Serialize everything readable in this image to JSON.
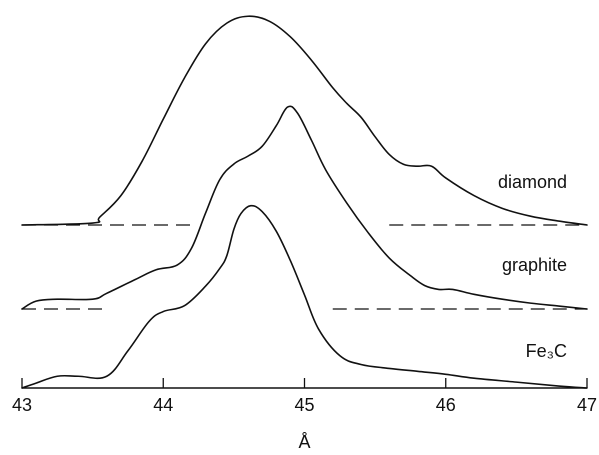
{
  "chart_data": {
    "type": "line",
    "xlabel": "Å",
    "xlim": [
      43,
      47
    ],
    "xticks": [
      43,
      44,
      45,
      46,
      47
    ],
    "tick_labels": [
      "43",
      "44",
      "45",
      "46",
      "47"
    ],
    "ylabel": "",
    "y_axis_shown": false,
    "grid": false,
    "series": [
      {
        "name": "diamond",
        "baseline": {
          "segments": [
            [
              43.0,
              44.2
            ],
            [
              45.6,
              47.0
            ]
          ]
        },
        "points": [
          [
            43.0,
            0.0
          ],
          [
            43.5,
            0.02
          ],
          [
            43.55,
            0.08
          ],
          [
            43.7,
            0.3
          ],
          [
            43.85,
            0.65
          ],
          [
            44.0,
            1.08
          ],
          [
            44.15,
            1.5
          ],
          [
            44.3,
            1.85
          ],
          [
            44.45,
            2.06
          ],
          [
            44.6,
            2.13
          ],
          [
            44.75,
            2.08
          ],
          [
            44.9,
            1.92
          ],
          [
            45.05,
            1.68
          ],
          [
            45.2,
            1.4
          ],
          [
            45.3,
            1.24
          ],
          [
            45.4,
            1.1
          ],
          [
            45.5,
            0.9
          ],
          [
            45.6,
            0.72
          ],
          [
            45.7,
            0.62
          ],
          [
            45.8,
            0.6
          ],
          [
            45.9,
            0.6
          ],
          [
            46.0,
            0.48
          ],
          [
            46.2,
            0.3
          ],
          [
            46.4,
            0.17
          ],
          [
            46.6,
            0.09
          ],
          [
            46.8,
            0.04
          ],
          [
            47.0,
            0.0
          ]
        ]
      },
      {
        "name": "graphite",
        "baseline": {
          "segments": [
            [
              43.0,
              43.6
            ],
            [
              45.2,
              47.0
            ]
          ]
        },
        "points": [
          [
            43.0,
            0.0
          ],
          [
            43.1,
            0.08
          ],
          [
            43.25,
            0.1
          ],
          [
            43.5,
            0.1
          ],
          [
            43.6,
            0.16
          ],
          [
            43.8,
            0.3
          ],
          [
            43.95,
            0.4
          ],
          [
            44.1,
            0.45
          ],
          [
            44.2,
            0.62
          ],
          [
            44.3,
            0.98
          ],
          [
            44.4,
            1.32
          ],
          [
            44.5,
            1.48
          ],
          [
            44.6,
            1.56
          ],
          [
            44.7,
            1.66
          ],
          [
            44.8,
            1.87
          ],
          [
            44.88,
            2.06
          ],
          [
            44.95,
            2.0
          ],
          [
            45.05,
            1.72
          ],
          [
            45.15,
            1.42
          ],
          [
            45.3,
            1.08
          ],
          [
            45.45,
            0.78
          ],
          [
            45.6,
            0.52
          ],
          [
            45.75,
            0.34
          ],
          [
            45.85,
            0.24
          ],
          [
            45.95,
            0.2
          ],
          [
            46.05,
            0.2
          ],
          [
            46.2,
            0.15
          ],
          [
            46.4,
            0.1
          ],
          [
            46.6,
            0.06
          ],
          [
            46.8,
            0.03
          ],
          [
            47.0,
            0.0
          ]
        ]
      },
      {
        "name": "Fe₃C",
        "baseline": null,
        "points": [
          [
            43.0,
            0.0
          ],
          [
            43.1,
            0.05
          ],
          [
            43.25,
            0.12
          ],
          [
            43.4,
            0.12
          ],
          [
            43.6,
            0.12
          ],
          [
            43.75,
            0.38
          ],
          [
            43.9,
            0.68
          ],
          [
            44.0,
            0.78
          ],
          [
            44.15,
            0.84
          ],
          [
            44.3,
            1.04
          ],
          [
            44.4,
            1.22
          ],
          [
            44.45,
            1.35
          ],
          [
            44.5,
            1.62
          ],
          [
            44.55,
            1.78
          ],
          [
            44.62,
            1.86
          ],
          [
            44.7,
            1.8
          ],
          [
            44.8,
            1.6
          ],
          [
            44.9,
            1.3
          ],
          [
            45.0,
            0.95
          ],
          [
            45.1,
            0.6
          ],
          [
            45.25,
            0.33
          ],
          [
            45.4,
            0.24
          ],
          [
            45.6,
            0.2
          ],
          [
            45.8,
            0.17
          ],
          [
            46.0,
            0.14
          ],
          [
            46.2,
            0.1
          ],
          [
            46.5,
            0.06
          ],
          [
            46.8,
            0.02
          ],
          [
            47.0,
            0.0
          ]
        ]
      }
    ]
  }
}
